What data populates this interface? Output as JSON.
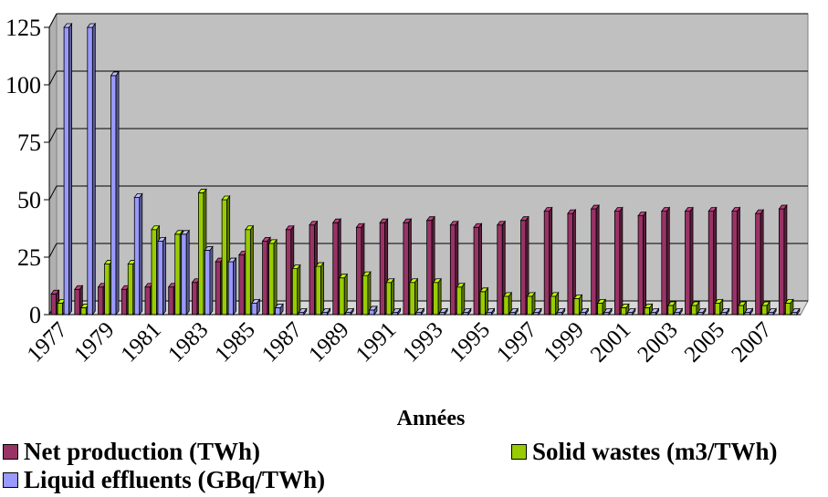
{
  "chart_data": {
    "type": "bar",
    "categories": [
      "1977",
      "1978",
      "1979",
      "1980",
      "1981",
      "1982",
      "1983",
      "1984",
      "1985",
      "1986",
      "1987",
      "1988",
      "1989",
      "1990",
      "1991",
      "1992",
      "1993",
      "1994",
      "1995",
      "1996",
      "1997",
      "1998",
      "1999",
      "2000",
      "2001",
      "2002",
      "2003",
      "2004",
      "2005",
      "2006",
      "2007",
      "2008"
    ],
    "x_tick_labels": [
      "1977",
      "1979",
      "1981",
      "1983",
      "1985",
      "1987",
      "1989",
      "1991",
      "1993",
      "1995",
      "1997",
      "1999",
      "2001",
      "2003",
      "2005",
      "2007"
    ],
    "series": [
      {
        "name": "Net production (TWh)",
        "color": "#993366",
        "values": [
          9,
          11,
          12,
          11,
          12,
          12,
          14,
          23,
          26,
          32,
          37,
          39,
          40,
          38,
          40,
          40,
          41,
          39,
          38,
          39,
          41,
          45,
          44,
          46,
          45,
          43,
          45,
          45,
          45,
          45,
          44,
          46
        ]
      },
      {
        "name": "Solid wastes (m3/TWh)",
        "color": "#99cc00",
        "values": [
          5,
          3,
          22,
          22,
          37,
          35,
          53,
          50,
          37,
          31,
          20,
          21,
          16,
          17,
          14,
          14,
          14,
          12,
          10,
          8,
          8,
          8,
          7,
          5,
          3,
          3,
          4,
          4,
          5,
          4,
          4,
          5
        ]
      },
      {
        "name": "Liquid effluents (GBq/TWh)",
        "color": "#9999ff",
        "values": [
          125,
          125,
          104,
          51,
          32,
          35,
          28,
          23,
          5,
          3,
          1,
          1,
          1,
          2,
          1,
          1,
          1,
          1,
          1,
          1,
          1,
          1,
          1,
          1,
          1,
          1,
          1,
          1,
          1,
          1,
          1,
          1
        ]
      }
    ],
    "xlabel": "Années",
    "ylabel": "",
    "ylim": [
      0,
      125
    ],
    "yticks": [
      0,
      25,
      50,
      75,
      100,
      125
    ],
    "grid": true,
    "legend_position": "bottom"
  }
}
